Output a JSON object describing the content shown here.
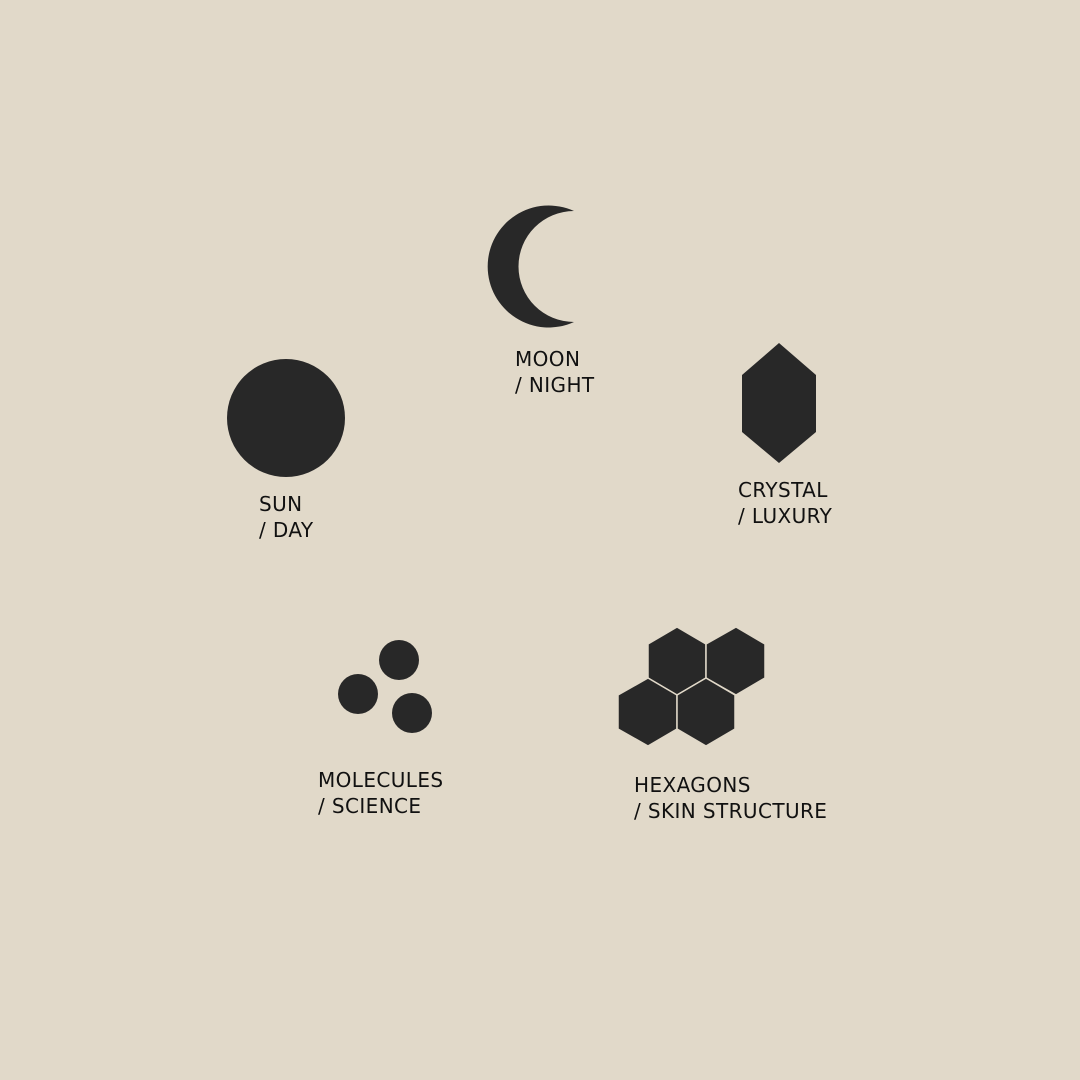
{
  "colors": {
    "background": "#e1d9c9",
    "shape": "#282828",
    "text": "#111111"
  },
  "symbols": [
    {
      "id": "moon",
      "icon": "crescent-moon-icon",
      "title": "MOON",
      "subtitle": "/ NIGHT"
    },
    {
      "id": "sun",
      "icon": "sun-circle-icon",
      "title": "SUN",
      "subtitle": "/ DAY"
    },
    {
      "id": "crystal",
      "icon": "crystal-icon",
      "title": "CRYSTAL",
      "subtitle": "/ LUXURY"
    },
    {
      "id": "molecules",
      "icon": "molecules-icon",
      "title": "MOLECULES",
      "subtitle": "/ SCIENCE"
    },
    {
      "id": "hexagons",
      "icon": "hexagon-cluster-icon",
      "title": "HEXAGONS",
      "subtitle": "/ SKIN STRUCTURE"
    }
  ]
}
